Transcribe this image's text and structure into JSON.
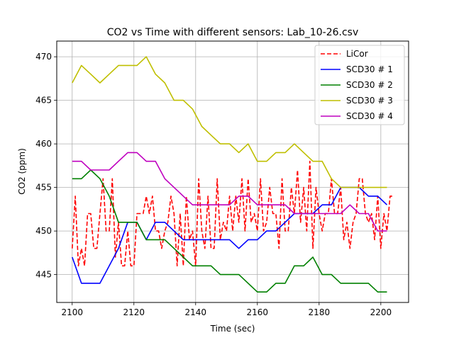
{
  "chart_data": {
    "type": "line",
    "title": "CO2 vs Time with different sensors: Lab_10-26.csv",
    "xlabel": "Time (sec)",
    "ylabel": "CO2 (ppm)",
    "xlim": [
      2095,
      2209
    ],
    "ylim": [
      441.8,
      471.8
    ],
    "xticks": [
      2100,
      2120,
      2140,
      2160,
      2180,
      2200
    ],
    "yticks": [
      445,
      450,
      455,
      460,
      465,
      470
    ],
    "grid": true,
    "legend_position": "top-right",
    "series": [
      {
        "name": "LiCor",
        "color": "#ff0000",
        "dash": true,
        "x": [
          2100,
          2101,
          2102,
          2103,
          2104,
          2105,
          2106,
          2107,
          2108,
          2109,
          2110,
          2111,
          2112,
          2113,
          2114,
          2115,
          2116,
          2117,
          2118,
          2119,
          2120,
          2121,
          2122,
          2123,
          2124,
          2125,
          2126,
          2127,
          2128,
          2129,
          2130,
          2131,
          2132,
          2133,
          2134,
          2135,
          2136,
          2137,
          2138,
          2139,
          2140,
          2141,
          2142,
          2143,
          2144,
          2145,
          2146,
          2147,
          2148,
          2149,
          2150,
          2151,
          2152,
          2153,
          2154,
          2155,
          2156,
          2157,
          2158,
          2159,
          2160,
          2161,
          2162,
          2163,
          2164,
          2165,
          2166,
          2167,
          2168,
          2169,
          2170,
          2171,
          2172,
          2173,
          2174,
          2175,
          2176,
          2177,
          2178,
          2179,
          2180,
          2181,
          2182,
          2183,
          2184,
          2185,
          2186,
          2187,
          2188,
          2189,
          2190,
          2191,
          2192,
          2193,
          2194,
          2195,
          2196,
          2197,
          2198,
          2199,
          2200,
          2201,
          2202,
          2203,
          2204
        ],
        "y": [
          448,
          454,
          446,
          448,
          446,
          452,
          452,
          448,
          448,
          452,
          456,
          450,
          450,
          456,
          447,
          451,
          446,
          446,
          450,
          446,
          446,
          452,
          452,
          452,
          454,
          452,
          454,
          450,
          450,
          448,
          450,
          451,
          454,
          452,
          446,
          452,
          446,
          454,
          449,
          450,
          446,
          456,
          450,
          448,
          454,
          448,
          448,
          456,
          449,
          451,
          450,
          454,
          450,
          454,
          451,
          456,
          450,
          456,
          451,
          452,
          450,
          456,
          450,
          451,
          455,
          452,
          452,
          448,
          456,
          450,
          450,
          455,
          452,
          457,
          451,
          455,
          450,
          458,
          448,
          455,
          452,
          450,
          452,
          452,
          456,
          452,
          452,
          455,
          449,
          451,
          448,
          451,
          452,
          456,
          456,
          452,
          451,
          452,
          449,
          454,
          448,
          452,
          450,
          454,
          454
        ]
      },
      {
        "name": "SCD30 # 1",
        "color": "#0000ff",
        "dash": false,
        "x": [
          2100,
          2103,
          2106,
          2109,
          2112,
          2115,
          2118,
          2121,
          2124,
          2127,
          2130,
          2133,
          2136,
          2139,
          2142,
          2145,
          2148,
          2151,
          2154,
          2157,
          2160,
          2163,
          2166,
          2169,
          2172,
          2175,
          2178,
          2181,
          2184,
          2187,
          2190,
          2193,
          2196,
          2199,
          2202
        ],
        "y": [
          447,
          444,
          444,
          444,
          446,
          448,
          451,
          451,
          449,
          451,
          451,
          450,
          449,
          449,
          449,
          449,
          449,
          449,
          448,
          449,
          449,
          450,
          450,
          451,
          452,
          452,
          452,
          453,
          453,
          455,
          455,
          455,
          454,
          454,
          453
        ]
      },
      {
        "name": "SCD30 # 2",
        "color": "#008000",
        "dash": false,
        "x": [
          2100,
          2103,
          2106,
          2109,
          2112,
          2115,
          2118,
          2121,
          2124,
          2127,
          2130,
          2133,
          2136,
          2139,
          2142,
          2145,
          2148,
          2151,
          2154,
          2157,
          2160,
          2163,
          2166,
          2169,
          2172,
          2175,
          2178,
          2181,
          2184,
          2187,
          2190,
          2193,
          2196,
          2199,
          2202
        ],
        "y": [
          456,
          456,
          457,
          456,
          454,
          451,
          451,
          451,
          449,
          449,
          449,
          448,
          447,
          446,
          446,
          446,
          445,
          445,
          445,
          444,
          443,
          443,
          444,
          444,
          446,
          446,
          447,
          445,
          445,
          444,
          444,
          444,
          444,
          443,
          443
        ]
      },
      {
        "name": "SCD30 # 3",
        "color": "#bfbf00",
        "dash": false,
        "x": [
          2100,
          2103,
          2106,
          2109,
          2112,
          2115,
          2118,
          2121,
          2124,
          2127,
          2130,
          2133,
          2136,
          2139,
          2142,
          2145,
          2148,
          2151,
          2154,
          2157,
          2160,
          2163,
          2166,
          2169,
          2172,
          2175,
          2178,
          2181,
          2184,
          2187,
          2190,
          2193,
          2196,
          2199,
          2202
        ],
        "y": [
          467,
          469,
          468,
          467,
          468,
          469,
          469,
          469,
          470,
          468,
          467,
          465,
          465,
          464,
          462,
          461,
          460,
          460,
          459,
          460,
          458,
          458,
          459,
          459,
          460,
          459,
          458,
          458,
          456,
          455,
          455,
          455,
          455,
          455,
          455
        ]
      },
      {
        "name": "SCD30 # 4",
        "color": "#bf00bf",
        "dash": false,
        "x": [
          2100,
          2103,
          2106,
          2109,
          2112,
          2115,
          2118,
          2121,
          2124,
          2127,
          2130,
          2133,
          2136,
          2139,
          2142,
          2145,
          2148,
          2151,
          2154,
          2157,
          2160,
          2163,
          2166,
          2169,
          2172,
          2175,
          2178,
          2181,
          2184,
          2187,
          2190,
          2193,
          2196,
          2199,
          2202
        ],
        "y": [
          458,
          458,
          457,
          457,
          457,
          458,
          459,
          459,
          458,
          458,
          456,
          455,
          454,
          453,
          453,
          453,
          453,
          453,
          454,
          454,
          453,
          453,
          453,
          453,
          452,
          452,
          452,
          452,
          452,
          452,
          453,
          452,
          452,
          450,
          450
        ]
      }
    ]
  }
}
